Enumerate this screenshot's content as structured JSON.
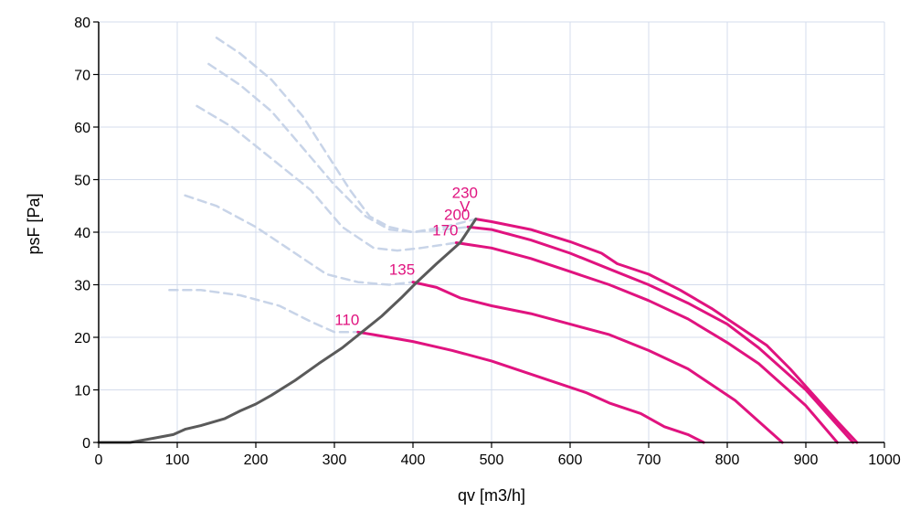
{
  "chart_data": {
    "type": "line",
    "xlabel": "qv [m3/h]",
    "ylabel": "psF [Pa]",
    "xlim": [
      0,
      1000
    ],
    "ylim": [
      0,
      80
    ],
    "x_ticks": [
      "0",
      "100",
      "200",
      "300",
      "400",
      "500",
      "600",
      "700",
      "800",
      "900",
      "1000"
    ],
    "y_ticks": [
      "0",
      "10",
      "20",
      "30",
      "40",
      "50",
      "60",
      "70",
      "80"
    ],
    "grid": true,
    "colors": {
      "fan_curves": "#e0137f",
      "system_curve": "#5a5a5a",
      "unstable_region": "#c8d4e8",
      "grid": "#d4dcec",
      "axis": "#000000"
    },
    "system_curve": {
      "points": [
        [
          0,
          0
        ],
        [
          40,
          0
        ],
        [
          70,
          0.8
        ],
        [
          95,
          1.5
        ],
        [
          110,
          2.5
        ],
        [
          130,
          3.2
        ],
        [
          160,
          4.5
        ],
        [
          180,
          6
        ],
        [
          200,
          7.3
        ],
        [
          220,
          9
        ],
        [
          250,
          11.8
        ],
        [
          280,
          15
        ],
        [
          310,
          18
        ],
        [
          335,
          21
        ],
        [
          360,
          24
        ],
        [
          385,
          27.5
        ],
        [
          405,
          30.5
        ],
        [
          430,
          34
        ],
        [
          460,
          38
        ],
        [
          480,
          42.5
        ]
      ]
    },
    "series": [
      {
        "name": "230",
        "label_lines": [
          "230",
          "V"
        ],
        "values": [
          [
            480,
            42.5
          ],
          [
            500,
            42
          ],
          [
            550,
            40.5
          ],
          [
            600,
            38.2
          ],
          [
            640,
            36
          ],
          [
            660,
            34
          ],
          [
            700,
            32
          ],
          [
            740,
            29
          ],
          [
            780,
            25.5
          ],
          [
            820,
            21.5
          ],
          [
            850,
            18.5
          ],
          [
            880,
            14
          ],
          [
            910,
            9
          ],
          [
            940,
            4
          ],
          [
            965,
            0
          ]
        ]
      },
      {
        "name": "200",
        "label_lines": [
          "200"
        ],
        "values": [
          [
            470,
            41
          ],
          [
            500,
            40.5
          ],
          [
            550,
            38.5
          ],
          [
            600,
            36
          ],
          [
            650,
            33
          ],
          [
            700,
            30
          ],
          [
            750,
            26.5
          ],
          [
            800,
            22.5
          ],
          [
            840,
            18
          ],
          [
            870,
            14
          ],
          [
            900,
            10
          ],
          [
            930,
            5
          ],
          [
            960,
            0
          ]
        ]
      },
      {
        "name": "170",
        "label_lines": [
          "170"
        ],
        "values": [
          [
            455,
            38
          ],
          [
            500,
            37
          ],
          [
            550,
            35
          ],
          [
            600,
            32.5
          ],
          [
            650,
            30
          ],
          [
            700,
            27
          ],
          [
            750,
            23.5
          ],
          [
            800,
            19
          ],
          [
            840,
            15
          ],
          [
            870,
            11
          ],
          [
            900,
            7
          ],
          [
            920,
            3.5
          ],
          [
            940,
            0
          ]
        ]
      },
      {
        "name": "135",
        "label_lines": [
          "135"
        ],
        "values": [
          [
            400,
            30.5
          ],
          [
            430,
            29.5
          ],
          [
            460,
            27.5
          ],
          [
            500,
            26
          ],
          [
            550,
            24.5
          ],
          [
            600,
            22.5
          ],
          [
            650,
            20.5
          ],
          [
            700,
            17.5
          ],
          [
            750,
            14
          ],
          [
            780,
            11
          ],
          [
            810,
            8
          ],
          [
            840,
            4
          ],
          [
            870,
            0
          ]
        ]
      },
      {
        "name": "110",
        "label_lines": [
          "110"
        ],
        "values": [
          [
            330,
            21
          ],
          [
            350,
            20.5
          ],
          [
            400,
            19.2
          ],
          [
            450,
            17.5
          ],
          [
            500,
            15.5
          ],
          [
            550,
            13
          ],
          [
            580,
            11.5
          ],
          [
            620,
            9.5
          ],
          [
            650,
            7.5
          ],
          [
            690,
            5.5
          ],
          [
            720,
            3
          ],
          [
            750,
            1.5
          ],
          [
            770,
            0
          ]
        ]
      }
    ],
    "unstable_curves": [
      [
        [
          150,
          77
        ],
        [
          180,
          74
        ],
        [
          220,
          69
        ],
        [
          260,
          62
        ],
        [
          290,
          55
        ],
        [
          320,
          48
        ],
        [
          345,
          43
        ],
        [
          370,
          41
        ],
        [
          400,
          40
        ],
        [
          440,
          41
        ],
        [
          480,
          42.5
        ]
      ],
      [
        [
          140,
          72
        ],
        [
          180,
          68
        ],
        [
          220,
          63
        ],
        [
          260,
          56
        ],
        [
          300,
          49
        ],
        [
          340,
          43
        ],
        [
          370,
          40.5
        ],
        [
          400,
          40
        ],
        [
          440,
          40.5
        ],
        [
          470,
          41
        ]
      ],
      [
        [
          125,
          64
        ],
        [
          170,
          60
        ],
        [
          220,
          54
        ],
        [
          270,
          48
        ],
        [
          310,
          41
        ],
        [
          350,
          37
        ],
        [
          380,
          36.5
        ],
        [
          410,
          37
        ],
        [
          455,
          38
        ]
      ],
      [
        [
          110,
          47
        ],
        [
          150,
          45
        ],
        [
          200,
          41
        ],
        [
          250,
          36
        ],
        [
          290,
          32
        ],
        [
          330,
          30.5
        ],
        [
          370,
          30
        ],
        [
          400,
          30.5
        ]
      ],
      [
        [
          90,
          29
        ],
        [
          130,
          29
        ],
        [
          180,
          28
        ],
        [
          230,
          26
        ],
        [
          270,
          23
        ],
        [
          300,
          21
        ],
        [
          330,
          21
        ]
      ]
    ]
  }
}
